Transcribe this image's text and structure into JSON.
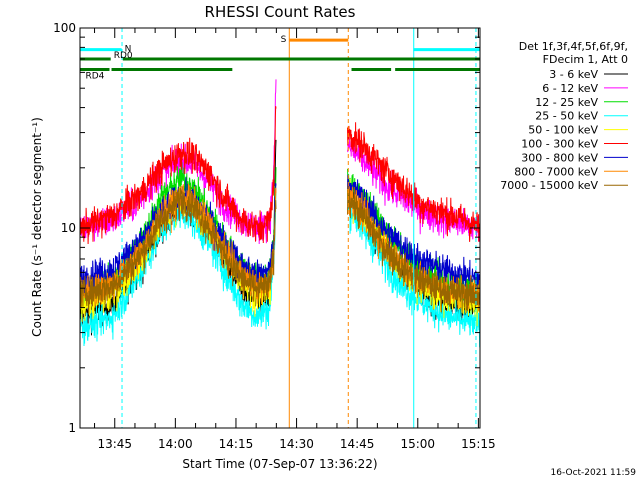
{
  "chart_data": {
    "type": "line",
    "title": "RHESSI Count Rates",
    "xlabel": "Start Time (07-Sep-07 13:36:22)",
    "ylabel": "Count Rate (s⁻¹ detector segment⁻¹)",
    "y_scale": "log",
    "ylim": [
      1,
      100
    ],
    "xlim_minutes_after_start": [
      0,
      99
    ],
    "y_ticks": [
      "1",
      "10",
      "100"
    ],
    "x_ticks": [
      {
        "label": "13:45",
        "minute": 8.6
      },
      {
        "label": "14:00",
        "minute": 23.6
      },
      {
        "label": "14:15",
        "minute": 38.6
      },
      {
        "label": "14:30",
        "minute": 53.6
      },
      {
        "label": "14:45",
        "minute": 68.6
      },
      {
        "label": "15:00",
        "minute": 83.6
      },
      {
        "label": "15:15",
        "minute": 98.6
      }
    ],
    "legend_header": [
      "Det 1f,3f,4f,5f,6f,9f,",
      "FDecim 1, Att 0"
    ],
    "legend_placement": "right",
    "timestamp": "16-Oct-2021 11:59",
    "gaps_minutes": [
      [
        48.5,
        66.2
      ]
    ],
    "series": [
      {
        "name": "3 - 6 keV",
        "color": "#000000",
        "segments": [
          [
            [
              0,
              3.6
            ],
            [
              8,
              4.2
            ],
            [
              15,
              6.5
            ],
            [
              20,
              10
            ],
            [
              25,
              14
            ],
            [
              28,
              13
            ],
            [
              32,
              10
            ],
            [
              36,
              7
            ],
            [
              40,
              5
            ],
            [
              44,
              4.2
            ],
            [
              47,
              4.5
            ],
            [
              48,
              8
            ],
            [
              48.5,
              30
            ]
          ],
          [
            [
              66.2,
              15
            ],
            [
              70,
              12
            ],
            [
              75,
              8
            ],
            [
              80,
              6
            ],
            [
              85,
              4.8
            ],
            [
              90,
              4.3
            ],
            [
              95,
              4
            ],
            [
              99,
              4.2
            ]
          ]
        ]
      },
      {
        "name": "6 - 12 keV",
        "color": "#ff00ff",
        "segments": [
          [
            [
              0,
              10
            ],
            [
              8,
              11
            ],
            [
              15,
              14
            ],
            [
              20,
              19
            ],
            [
              25,
              22
            ],
            [
              28,
              21
            ],
            [
              32,
              17
            ],
            [
              36,
              13
            ],
            [
              40,
              11
            ],
            [
              44,
              10
            ],
            [
              47,
              11
            ],
            [
              48,
              20
            ],
            [
              48.5,
              52
            ]
          ],
          [
            [
              66.2,
              26
            ],
            [
              70,
              22
            ],
            [
              75,
              17
            ],
            [
              80,
              14
            ],
            [
              85,
              12
            ],
            [
              90,
              11
            ],
            [
              95,
              10.5
            ],
            [
              99,
              10
            ]
          ]
        ]
      },
      {
        "name": "12 - 25 keV",
        "color": "#00dd00",
        "segments": [
          [
            [
              0,
              4.8
            ],
            [
              8,
              5.5
            ],
            [
              15,
              8.5
            ],
            [
              20,
              14
            ],
            [
              25,
              18
            ],
            [
              28,
              16
            ],
            [
              32,
              12
            ],
            [
              36,
              8.5
            ],
            [
              40,
              6.5
            ],
            [
              44,
              5.5
            ],
            [
              47,
              6
            ],
            [
              48,
              9
            ],
            [
              48.5,
              20
            ]
          ],
          [
            [
              66.2,
              18
            ],
            [
              70,
              14
            ],
            [
              75,
              10
            ],
            [
              80,
              7.5
            ],
            [
              85,
              6
            ],
            [
              90,
              5.5
            ],
            [
              95,
              5.2
            ],
            [
              99,
              5
            ]
          ]
        ]
      },
      {
        "name": "25 - 50 keV",
        "color": "#00ffff",
        "segments": [
          [
            [
              0,
              3.2
            ],
            [
              8,
              3.6
            ],
            [
              15,
              6
            ],
            [
              20,
              9.5
            ],
            [
              25,
              12
            ],
            [
              28,
              11
            ],
            [
              32,
              8.5
            ],
            [
              36,
              6
            ],
            [
              40,
              4.2
            ],
            [
              44,
              3.6
            ],
            [
              47,
              4
            ],
            [
              48,
              7
            ],
            [
              48.5,
              14
            ]
          ],
          [
            [
              66.2,
              13
            ],
            [
              70,
              10
            ],
            [
              75,
              7
            ],
            [
              80,
              5
            ],
            [
              85,
              4.2
            ],
            [
              90,
              3.7
            ],
            [
              95,
              3.4
            ],
            [
              99,
              3.3
            ]
          ]
        ]
      },
      {
        "name": "50 - 100 keV",
        "color": "#ffff00",
        "segments": [
          [
            [
              0,
              4.2
            ],
            [
              8,
              4.6
            ],
            [
              15,
              7
            ],
            [
              20,
              11
            ],
            [
              25,
              14
            ],
            [
              28,
              13
            ],
            [
              32,
              10
            ],
            [
              36,
              7.5
            ],
            [
              40,
              5.5
            ],
            [
              44,
              4.6
            ],
            [
              47,
              5
            ],
            [
              48,
              8
            ],
            [
              48.5,
              16
            ]
          ],
          [
            [
              66.2,
              15
            ],
            [
              70,
              12
            ],
            [
              75,
              8.5
            ],
            [
              80,
              6
            ],
            [
              85,
              5
            ],
            [
              90,
              4.5
            ],
            [
              95,
              4.3
            ],
            [
              99,
              4.2
            ]
          ]
        ]
      },
      {
        "name": "100 - 300 keV",
        "color": "#ff0000",
        "segments": [
          [
            [
              0,
              10
            ],
            [
              8,
              11.5
            ],
            [
              15,
              15
            ],
            [
              20,
              20
            ],
            [
              25,
              24
            ],
            [
              28,
              23
            ],
            [
              32,
              19
            ],
            [
              36,
              14
            ],
            [
              40,
              11
            ],
            [
              44,
              10
            ],
            [
              47,
              11
            ],
            [
              48,
              18
            ],
            [
              48.5,
              40
            ]
          ],
          [
            [
              66.2,
              30
            ],
            [
              70,
              26
            ],
            [
              75,
              20
            ],
            [
              80,
              16
            ],
            [
              85,
              13
            ],
            [
              90,
              12
            ],
            [
              95,
              11
            ],
            [
              99,
              10
            ]
          ]
        ]
      },
      {
        "name": "300 - 800 keV",
        "color": "#0000cc",
        "segments": [
          [
            [
              0,
              5.6
            ],
            [
              8,
              6.2
            ],
            [
              15,
              8.5
            ],
            [
              20,
              12
            ],
            [
              25,
              14.5
            ],
            [
              28,
              14
            ],
            [
              32,
              11
            ],
            [
              36,
              8.5
            ],
            [
              40,
              6.5
            ],
            [
              44,
              5.8
            ],
            [
              47,
              6.2
            ],
            [
              48,
              9
            ],
            [
              48.5,
              18
            ]
          ],
          [
            [
              66.2,
              17
            ],
            [
              70,
              14
            ],
            [
              75,
              10
            ],
            [
              80,
              8
            ],
            [
              85,
              6.8
            ],
            [
              90,
              6.2
            ],
            [
              95,
              5.8
            ],
            [
              99,
              5.6
            ]
          ]
        ]
      },
      {
        "name": "800 - 7000 keV",
        "color": "#ff8800",
        "segments": [
          [
            [
              0,
              4.8
            ],
            [
              8,
              5.2
            ],
            [
              15,
              7.5
            ],
            [
              20,
              11.5
            ],
            [
              25,
              14.5
            ],
            [
              28,
              13.5
            ],
            [
              32,
              10.5
            ],
            [
              36,
              7.5
            ],
            [
              40,
              5.8
            ],
            [
              44,
              5
            ],
            [
              47,
              5.3
            ],
            [
              48,
              8
            ],
            [
              48.5,
              15
            ]
          ],
          [
            [
              66.2,
              15
            ],
            [
              70,
              12
            ],
            [
              75,
              8.5
            ],
            [
              80,
              6.5
            ],
            [
              85,
              5.5
            ],
            [
              90,
              5
            ],
            [
              95,
              4.8
            ],
            [
              99,
              4.7
            ]
          ]
        ]
      },
      {
        "name": "7000 - 15000 keV",
        "color": "#996600",
        "segments": [
          [
            [
              0,
              4.7
            ],
            [
              8,
              5.1
            ],
            [
              15,
              7.3
            ],
            [
              20,
              11
            ],
            [
              25,
              14
            ],
            [
              28,
              13
            ],
            [
              32,
              10
            ],
            [
              36,
              7.3
            ],
            [
              40,
              5.6
            ],
            [
              44,
              4.9
            ],
            [
              47,
              5.2
            ],
            [
              48,
              7.8
            ],
            [
              48.5,
              14
            ]
          ],
          [
            [
              66.2,
              14.5
            ],
            [
              70,
              11.5
            ],
            [
              75,
              8.2
            ],
            [
              80,
              6.3
            ],
            [
              85,
              5.4
            ],
            [
              90,
              4.9
            ],
            [
              95,
              4.7
            ],
            [
              99,
              4.6
            ]
          ]
        ]
      }
    ],
    "status_bars": [
      {
        "label": "N",
        "color": "#00ffff",
        "y_value": 78,
        "segments": [
          [
            0,
            10.3
          ],
          [
            82.5,
            99
          ]
        ]
      },
      {
        "label": "RD0",
        "color": "#007700",
        "y_value": 70,
        "segments": [
          [
            0,
            7.6
          ],
          [
            10.6,
            99
          ]
        ]
      },
      {
        "label": "RD4",
        "color": "#007700",
        "y_value": 62,
        "segments": [
          [
            0,
            7.3
          ],
          [
            7.8,
            37.7
          ],
          [
            67.2,
            77
          ],
          [
            78,
            99
          ]
        ]
      },
      {
        "label": "S",
        "color": "#ff8800",
        "y_value": 87,
        "segments": [
          [
            51.8,
            66.4
          ]
        ]
      }
    ],
    "vertical_lines": [
      {
        "color": "#00ffff",
        "style": "solid",
        "minute": 0
      },
      {
        "color": "#00ffff",
        "style": "dashed",
        "minute": 10.4
      },
      {
        "color": "#ff8800",
        "style": "solid",
        "minute": 51.8
      },
      {
        "color": "#ff8800",
        "style": "dashed",
        "minute": 66.4
      },
      {
        "color": "#00ffff",
        "style": "solid",
        "minute": 82.6
      },
      {
        "color": "#00ffff",
        "style": "dashed",
        "minute": 98
      }
    ]
  }
}
